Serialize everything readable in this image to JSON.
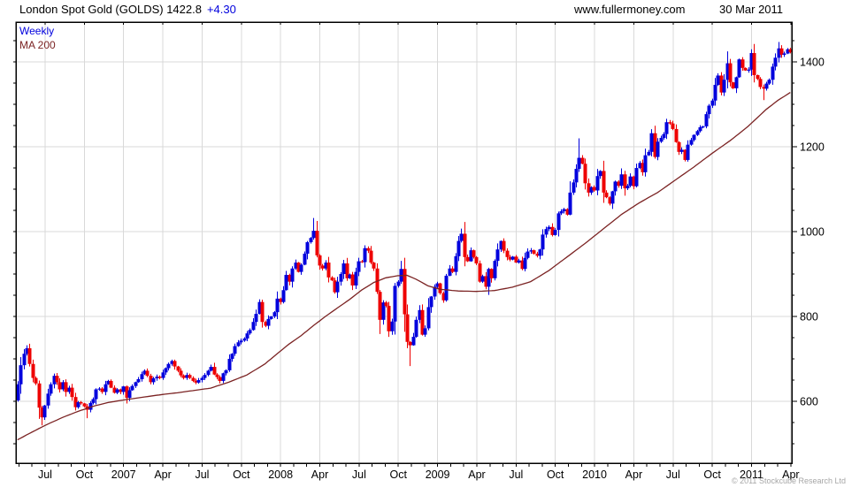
{
  "header": {
    "title": "London Spot Gold (GOLDS) 1422.8",
    "change": "+4.30",
    "website": "www.fullermoney.com",
    "date": "30 Mar 2011"
  },
  "legend": {
    "series1": "Weekly",
    "series2": "MA 200"
  },
  "footer": {
    "copyright": "© 2011 Stockcube Research Ltd"
  },
  "chart_data": {
    "type": "candlestick",
    "title": "London Spot Gold (GOLDS)",
    "frequency": "Weekly",
    "overlay": "MA 200",
    "last_price": 1422.8,
    "change": 4.3,
    "ylim": [
      454,
      1494
    ],
    "y_ticks": [
      600,
      800,
      1000,
      1200,
      1400
    ],
    "y_minor_tick_step": 50,
    "x_minor_ticks": "monthly",
    "x_major_ticks": "quarterly",
    "grid": "on",
    "legend_position": "top-left",
    "x_tick_labels": [
      "Jul",
      "Oct",
      "2007",
      "Apr",
      "Jul",
      "Oct",
      "2008",
      "Apr",
      "Jul",
      "Oct",
      "2009",
      "Apr",
      "Jul",
      "Oct",
      "2010",
      "Apr",
      "Jul",
      "Oct",
      "2011",
      "Apr"
    ],
    "open_first": 602,
    "weekly_closes": [
      640,
      685,
      712,
      725,
      688,
      655,
      642,
      585,
      562,
      590,
      618,
      640,
      660,
      645,
      628,
      645,
      622,
      632,
      610,
      586,
      598,
      595,
      588,
      580,
      596,
      605,
      628,
      630,
      622,
      640,
      648,
      632,
      620,
      628,
      622,
      635,
      608,
      626,
      636,
      645,
      652,
      664,
      672,
      660,
      645,
      654,
      658,
      655,
      668,
      678,
      688,
      695,
      682,
      672,
      661,
      655,
      662,
      655,
      648,
      644,
      650,
      655,
      662,
      672,
      681,
      663,
      657,
      648,
      666,
      673,
      700,
      712,
      730,
      739,
      743,
      748,
      760,
      768,
      787,
      806,
      834,
      787,
      778,
      794,
      800,
      810,
      842,
      834,
      862,
      898,
      882,
      913,
      927,
      905,
      922,
      948,
      975,
      985,
      1002,
      944,
      920,
      913,
      927,
      892,
      885,
      857,
      882,
      900,
      925,
      890,
      899,
      873,
      905,
      930,
      928,
      961,
      955,
      927,
      913,
      858,
      792,
      833,
      825,
      765,
      788,
      872,
      882,
      912,
      805,
      740,
      732,
      752,
      792,
      815,
      757,
      772,
      822,
      847,
      870,
      878,
      855,
      838,
      896,
      913,
      905,
      942,
      978,
      995,
      940,
      930,
      956,
      940,
      925,
      882,
      895,
      870,
      912,
      890,
      931,
      958,
      978,
      955,
      940,
      934,
      941,
      927,
      932,
      912,
      938,
      953,
      956,
      948,
      943,
      958,
      993,
      1006,
      1011,
      992,
      1004,
      1043,
      1048,
      1053,
      1040,
      1092,
      1116,
      1148,
      1174,
      1160,
      1114,
      1092,
      1105,
      1097,
      1131,
      1143,
      1092,
      1081,
      1066,
      1095,
      1118,
      1108,
      1135,
      1102,
      1108,
      1130,
      1107,
      1150,
      1162,
      1140,
      1180,
      1188,
      1232,
      1176,
      1212,
      1221,
      1230,
      1258,
      1255,
      1242,
      1211,
      1188,
      1193,
      1169,
      1205,
      1216,
      1228,
      1237,
      1246,
      1248,
      1277,
      1297,
      1309,
      1346,
      1368,
      1328,
      1358,
      1397,
      1352,
      1338,
      1364,
      1406,
      1386,
      1380,
      1382,
      1421,
      1369,
      1360,
      1341,
      1337,
      1349,
      1358,
      1389,
      1410,
      1432,
      1417,
      1420,
      1430,
      1423
    ],
    "wick_overrides": {
      "3": {
        "high": 732
      },
      "8": {
        "low": 543
      },
      "23": {
        "low": 560
      },
      "98": {
        "high": 1032
      },
      "127": {
        "high": 931
      },
      "130": {
        "low": 683
      },
      "147": {
        "high": 1007
      },
      "186": {
        "high": 1220
      },
      "215": {
        "high": 1266
      },
      "235": {
        "high": 1425
      },
      "247": {
        "low": 1310
      },
      "252": {
        "high": 1447
      }
    },
    "ma_anchors": [
      [
        0,
        509
      ],
      [
        5,
        528
      ],
      [
        10,
        546
      ],
      [
        15,
        562
      ],
      [
        20,
        576
      ],
      [
        25,
        588
      ],
      [
        30,
        597
      ],
      [
        36,
        604
      ],
      [
        42,
        610
      ],
      [
        48,
        616
      ],
      [
        53,
        620
      ],
      [
        58,
        625
      ],
      [
        64,
        631
      ],
      [
        70,
        645
      ],
      [
        76,
        662
      ],
      [
        82,
        688
      ],
      [
        86,
        712
      ],
      [
        90,
        735
      ],
      [
        94,
        755
      ],
      [
        98,
        778
      ],
      [
        102,
        800
      ],
      [
        106,
        820
      ],
      [
        110,
        840
      ],
      [
        114,
        862
      ],
      [
        118,
        880
      ],
      [
        122,
        891
      ],
      [
        126,
        896
      ],
      [
        129,
        897
      ],
      [
        132,
        888
      ],
      [
        136,
        872
      ],
      [
        140,
        864
      ],
      [
        146,
        860
      ],
      [
        152,
        859
      ],
      [
        158,
        861
      ],
      [
        164,
        869
      ],
      [
        170,
        882
      ],
      [
        176,
        908
      ],
      [
        182,
        940
      ],
      [
        188,
        972
      ],
      [
        194,
        1006
      ],
      [
        200,
        1040
      ],
      [
        206,
        1068
      ],
      [
        212,
        1092
      ],
      [
        218,
        1122
      ],
      [
        224,
        1152
      ],
      [
        230,
        1184
      ],
      [
        236,
        1214
      ],
      [
        242,
        1248
      ],
      [
        248,
        1288
      ],
      [
        252,
        1310
      ],
      [
        256,
        1328
      ]
    ],
    "colors": {
      "up": "#0000dd",
      "down": "#ee0000",
      "ma": "#7b2323",
      "grid": "#d9d9d9",
      "axis": "#000000",
      "copyright": "#a6a6a6"
    }
  }
}
